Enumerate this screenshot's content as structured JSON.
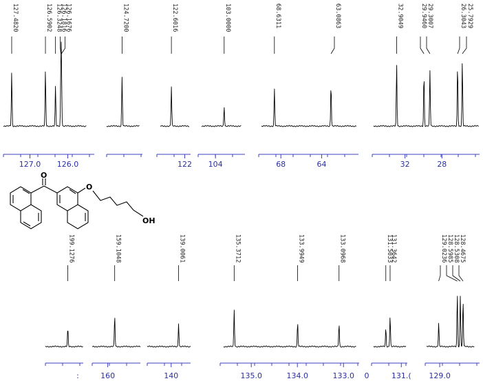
{
  "chart_data": {
    "type": "line",
    "colors": {
      "spectrum": "#000000",
      "axis": "#3b3fbf",
      "tick_text": "#2a2fa0"
    },
    "panels": [
      {
        "id": "p1",
        "xlim": [
          127.7,
          125.5
        ],
        "peaks": [
          {
            "x": 127.482,
            "h": 0.82,
            "label": "127.4820"
          },
          {
            "x": 126.5902,
            "h": 0.85,
            "label": "126.5902"
          },
          {
            "x": 126.3248,
            "h": 0.6,
            "label": "126.3248"
          },
          {
            "x": 126.1816,
            "h": 0.82,
            "label": "126.1816"
          },
          {
            "x": 126.1676,
            "h": 0.88,
            "label": "126.1676"
          }
        ],
        "ticks": [
          {
            "x": 127.0,
            "label": "127.0"
          },
          {
            "x": 126.0,
            "label": "126.0"
          }
        ]
      },
      {
        "id": "p2",
        "xlim": [
          125.0,
          124.4
        ],
        "peaks": [
          {
            "x": 124.72,
            "h": 0.75,
            "label": "124.7200"
          }
        ],
        "ticks": []
      },
      {
        "id": "p3",
        "xlim": [
          123.1,
          121.8
        ],
        "peaks": [
          {
            "x": 122.6016,
            "h": 0.6,
            "label": "122.6016"
          }
        ],
        "ticks": [
          {
            "x": 122.0,
            "label": "122"
          }
        ]
      },
      {
        "id": "p4",
        "xlim": [
          105.6,
          101.0
        ],
        "peaks": [
          {
            "x": 103.0,
            "h": 0.3,
            "label": "103.0000"
          }
        ],
        "ticks": [
          {
            "x": 104.0,
            "label": "104"
          }
        ]
      },
      {
        "id": "p5",
        "xlim": [
          69.9,
          60.6
        ],
        "peaks": [
          {
            "x": 68.6311,
            "h": 0.57,
            "label": "68.6311"
          },
          {
            "x": 63.0863,
            "h": 0.65,
            "label": "63.0863"
          }
        ],
        "ticks": [
          {
            "x": 68.0,
            "label": "68"
          },
          {
            "x": 64.0,
            "label": "64"
          }
        ]
      },
      {
        "id": "p6",
        "xlim": [
          35.4,
          24.0
        ],
        "peaks": [
          {
            "x": 32.9049,
            "h": 0.95,
            "label": "32.9049"
          },
          {
            "x": 29.946,
            "h": 0.8,
            "label": "29.9460"
          },
          {
            "x": 29.3007,
            "h": 0.85,
            "label": "29.3007"
          },
          {
            "x": 26.3043,
            "h": 0.95,
            "label": "26.3043"
          },
          {
            "x": 25.7929,
            "h": 0.98,
            "label": "25.7929"
          }
        ],
        "ticks": [
          {
            "x": 32.0,
            "label": "32"
          },
          {
            "x": 28.0,
            "label": "28"
          }
        ]
      },
      {
        "id": "p7",
        "xlim": [
          202.5,
          196.8
        ],
        "peaks": [
          {
            "x": 199.1276,
            "h": 0.3,
            "label": "199.1276"
          }
        ],
        "ticks": []
      },
      {
        "id": "p8",
        "xlim": [
          162.0,
          155.8
        ],
        "peaks": [
          {
            "x": 159.1048,
            "h": 0.5,
            "label": "159.1048"
          }
        ],
        "ticks": [
          {
            "x": 160.0,
            "label": "160"
          }
        ]
      },
      {
        "id": "p9",
        "xlim": [
          143.2,
          137.4
        ],
        "peaks": [
          {
            "x": 139.0061,
            "h": 0.38,
            "label": "139.0061"
          }
        ],
        "ticks": [
          {
            "x": 140.0,
            "label": "140"
          }
        ]
      },
      {
        "id": "p10",
        "xlim": [
          135.6,
          132.72
        ],
        "peaks": [
          {
            "x": 135.3712,
            "h": 0.6,
            "label": "135.3712"
          },
          {
            "x": 133.9949,
            "h": 0.4,
            "label": "133.9949"
          },
          {
            "x": 133.0968,
            "h": 0.38,
            "label": "133.0968"
          }
        ],
        "ticks": [
          {
            "x": 135.0,
            "label": "135.0"
          },
          {
            "x": 134.0,
            "label": "134.0"
          },
          {
            "x": 133.0,
            "label": "133.0"
          }
        ]
      },
      {
        "id": "p11",
        "xlim": [
          131.9,
          130.85
        ],
        "peaks": [
          {
            "x": 131.5033,
            "h": 0.3,
            "label": "131.5033"
          },
          {
            "x": 131.3642,
            "h": 0.5,
            "label": "131.3642"
          }
        ],
        "ticks": [
          {
            "x": 131.0,
            "label": "131.("
          }
        ]
      },
      {
        "id": "p12",
        "xlim": [
          129.3,
          128.2
        ],
        "peaks": [
          {
            "x": 129.0236,
            "h": 0.38,
            "label": "129.0236"
          },
          {
            "x": 128.5985,
            "h": 0.85,
            "label": "128.5985"
          },
          {
            "x": 128.5308,
            "h": 0.82,
            "label": "128.5308"
          },
          {
            "x": 128.4675,
            "h": 0.75,
            "label": "128.4675"
          }
        ],
        "ticks": [
          {
            "x": 129.0,
            "label": "129.0"
          }
        ]
      }
    ],
    "extra_tick_labels": [
      {
        "label": "0"
      },
      {
        "label": ":"
      }
    ]
  },
  "structure": {
    "atoms": [
      {
        "label": "O"
      },
      {
        "label": "O"
      },
      {
        "label": "OH"
      }
    ]
  }
}
